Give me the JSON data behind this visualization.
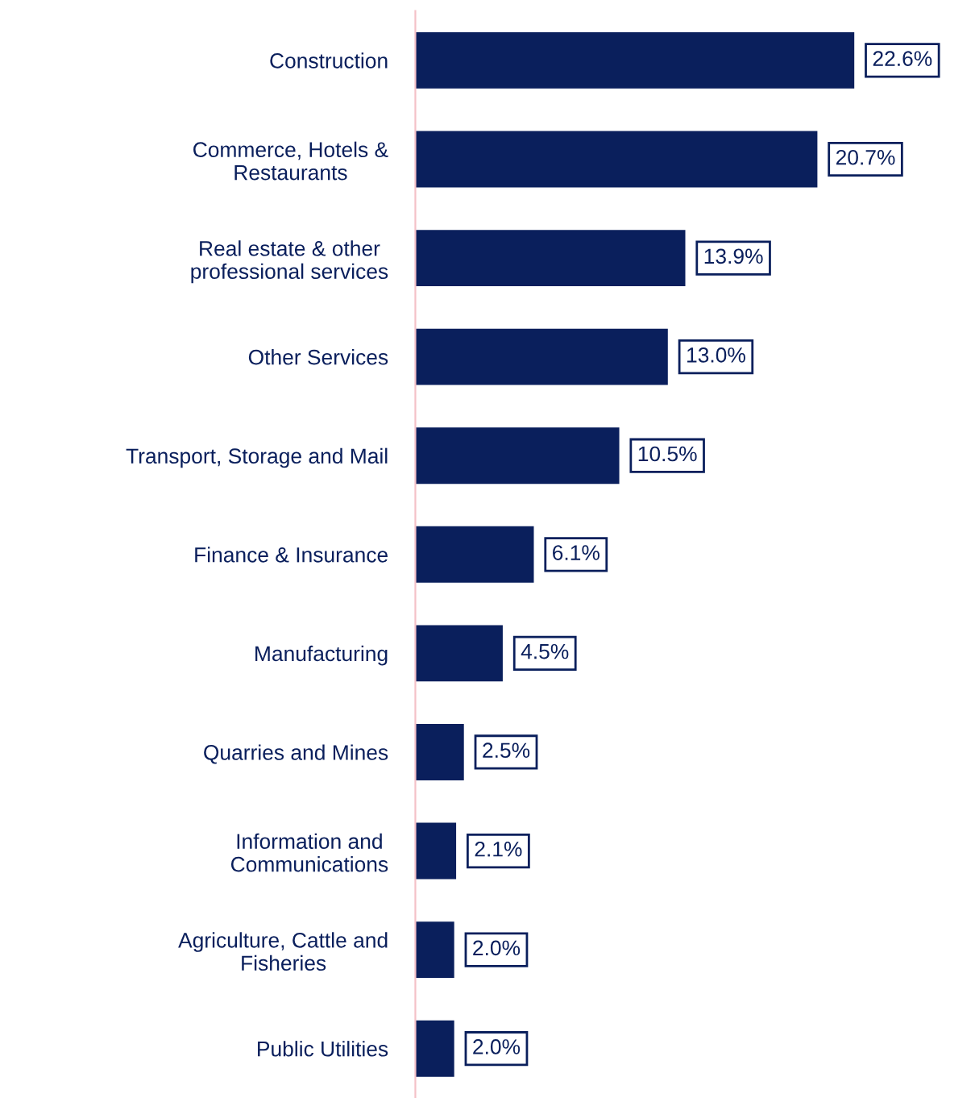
{
  "chart_data": {
    "type": "bar",
    "orientation": "horizontal",
    "relative": false,
    "categories": [
      "Construction",
      "Commerce, Hotels &\nRestaurants",
      "Real estate & other\nprofessional services",
      "Other Services",
      "Transport, Storage and Mail",
      "Finance & Insurance",
      "Manufacturing",
      "Quarries and Mines",
      "Information and\nCommunications",
      "Agriculture, Cattle and\nFisheries",
      "Public Utilities"
    ],
    "values": [
      22.6,
      20.7,
      13.9,
      13.0,
      10.5,
      6.1,
      4.5,
      2.5,
      2.1,
      2.0,
      2.0
    ],
    "value_labels": [
      "22.6%",
      "20.7%",
      "13.9%",
      "13.0%",
      "10.5%",
      "6.1%",
      "4.5%",
      "2.5%",
      "2.1%",
      "2.0%",
      "2.0%"
    ],
    "color": "#0a1f5c",
    "grid": false,
    "legend": false
  }
}
